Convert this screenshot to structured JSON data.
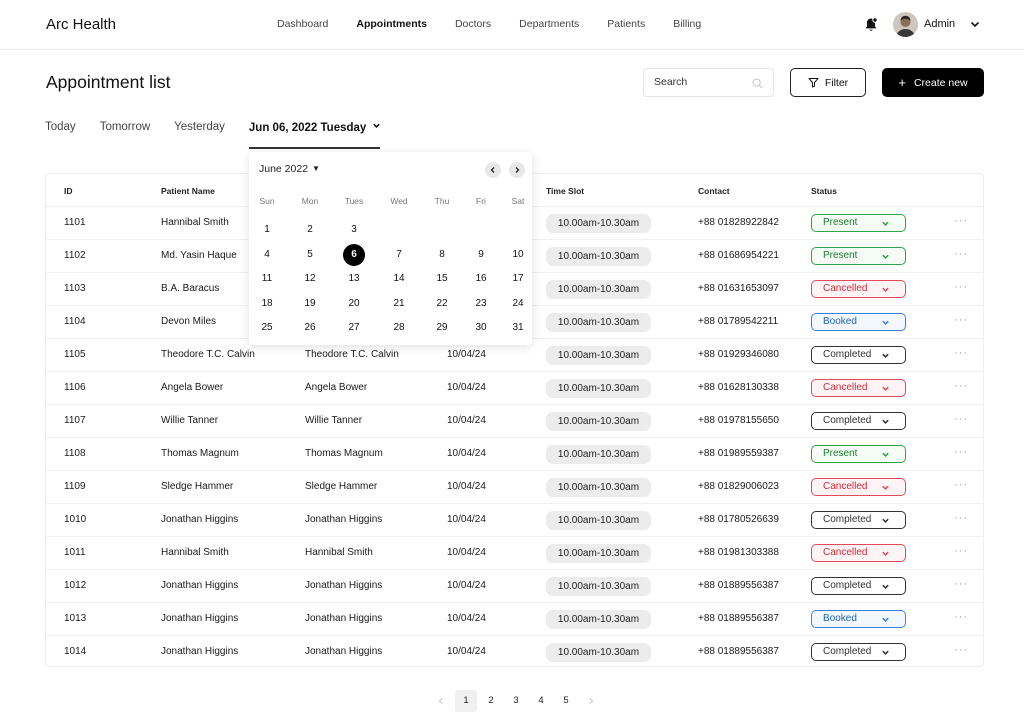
{
  "app": {
    "brand": "Arc Health"
  },
  "nav": {
    "items": [
      "Dashboard",
      "Appointments",
      "Doctors",
      "Departments",
      "Patients",
      "Billing"
    ],
    "active": "Appointments"
  },
  "user": {
    "name": "Admin"
  },
  "page": {
    "title": "Appointment list"
  },
  "search": {
    "placeholder": "Search",
    "value": ""
  },
  "actions": {
    "filter_label": "Filter",
    "create_label": "Create new"
  },
  "date_tabs": {
    "items": [
      "Today",
      "Tomorrow",
      "Yesterday",
      "Jun 06, 2022 Tuesday"
    ],
    "active": "Jun 06, 2022 Tuesday"
  },
  "calendar": {
    "month_label": "June 2022",
    "weekdays": [
      "Sun",
      "Mon",
      "Tues",
      "Wed",
      "Thu",
      "Fri",
      "Sat"
    ],
    "weeks": [
      [
        "1",
        "2",
        "3",
        "",
        "",
        "",
        ""
      ],
      [
        "4",
        "5",
        "6",
        "7",
        "8",
        "9",
        "10"
      ],
      [
        "11",
        "12",
        "13",
        "14",
        "15",
        "16",
        "17"
      ],
      [
        "18",
        "19",
        "20",
        "21",
        "22",
        "23",
        "24"
      ],
      [
        "25",
        "26",
        "27",
        "28",
        "29",
        "30",
        "31"
      ]
    ],
    "selected": "6"
  },
  "table": {
    "columns": [
      "ID",
      "Patient Name",
      "",
      "",
      "Time Slot",
      "Contact",
      "Status"
    ],
    "rows": [
      {
        "id": "1101",
        "patient": "Hannibal Smith",
        "doctor": "",
        "date": "",
        "slot": "10.00am-10.30am",
        "contact": "+88 01828922842",
        "status": "Present"
      },
      {
        "id": "1102",
        "patient": "Md. Yasin Haque",
        "doctor": "",
        "date": "",
        "slot": "10.00am-10.30am",
        "contact": "+88 01686954221",
        "status": "Present"
      },
      {
        "id": "1103",
        "patient": "B.A. Baracus",
        "doctor": "",
        "date": "",
        "slot": "10.00am-10.30am",
        "contact": "+88 01631653097",
        "status": "Cancelled"
      },
      {
        "id": "1104",
        "patient": "Devon Miles",
        "doctor": "",
        "date": "",
        "slot": "10.00am-10.30am",
        "contact": "+88 01789542211",
        "status": "Booked"
      },
      {
        "id": "1105",
        "patient": "Theodore T.C. Calvin",
        "doctor": "Theodore T.C. Calvin",
        "date": "10/04/24",
        "slot": "10.00am-10.30am",
        "contact": "+88 01929346080",
        "status": "Completed"
      },
      {
        "id": "1106",
        "patient": "Angela Bower",
        "doctor": "Angela Bower",
        "date": "10/04/24",
        "slot": "10.00am-10.30am",
        "contact": "+88 01628130338",
        "status": "Cancelled"
      },
      {
        "id": "1107",
        "patient": "Willie Tanner",
        "doctor": "Willie Tanner",
        "date": "10/04/24",
        "slot": "10.00am-10.30am",
        "contact": "+88 01978155650",
        "status": "Completed"
      },
      {
        "id": "1108",
        "patient": "Thomas Magnum",
        "doctor": "Thomas Magnum",
        "date": "10/04/24",
        "slot": "10.00am-10.30am",
        "contact": "+88 01989559387",
        "status": "Present"
      },
      {
        "id": "1109",
        "patient": "Sledge Hammer",
        "doctor": "Sledge Hammer",
        "date": "10/04/24",
        "slot": "10.00am-10.30am",
        "contact": "+88 01829006023",
        "status": "Cancelled"
      },
      {
        "id": "1010",
        "patient": "Jonathan Higgins",
        "doctor": "Jonathan Higgins",
        "date": "10/04/24",
        "slot": "10.00am-10.30am",
        "contact": "+88 01780526639",
        "status": "Completed"
      },
      {
        "id": "1011",
        "patient": "Hannibal Smith",
        "doctor": "Hannibal Smith",
        "date": "10/04/24",
        "slot": "10.00am-10.30am",
        "contact": "+88 01981303388",
        "status": "Cancelled"
      },
      {
        "id": "1012",
        "patient": "Jonathan Higgins",
        "doctor": "Jonathan Higgins",
        "date": "10/04/24",
        "slot": "10.00am-10.30am",
        "contact": "+88 01889556387",
        "status": "Completed"
      },
      {
        "id": "1013",
        "patient": "Jonathan Higgins",
        "doctor": "Jonathan Higgins",
        "date": "10/04/24",
        "slot": "10.00am-10.30am",
        "contact": "+88 01889556387",
        "status": "Booked"
      },
      {
        "id": "1014",
        "patient": "Jonathan Higgins",
        "doctor": "Jonathan Higgins",
        "date": "10/04/24",
        "slot": "10.00am-10.30am",
        "contact": "+88 01889556387",
        "status": "Completed"
      }
    ]
  },
  "status_colors": {
    "Present": "#2fa24a",
    "Cancelled": "#e04b5a",
    "Booked": "#3b82d6",
    "Completed": "#333333"
  },
  "pagination": {
    "pages": [
      "1",
      "2",
      "3",
      "4",
      "5"
    ],
    "current": "1"
  },
  "icons": {
    "bell": "bell-icon",
    "search": "search-icon",
    "filter": "filter-icon",
    "chevron": "chevron-down-icon",
    "more": "more-horizontal-icon"
  }
}
